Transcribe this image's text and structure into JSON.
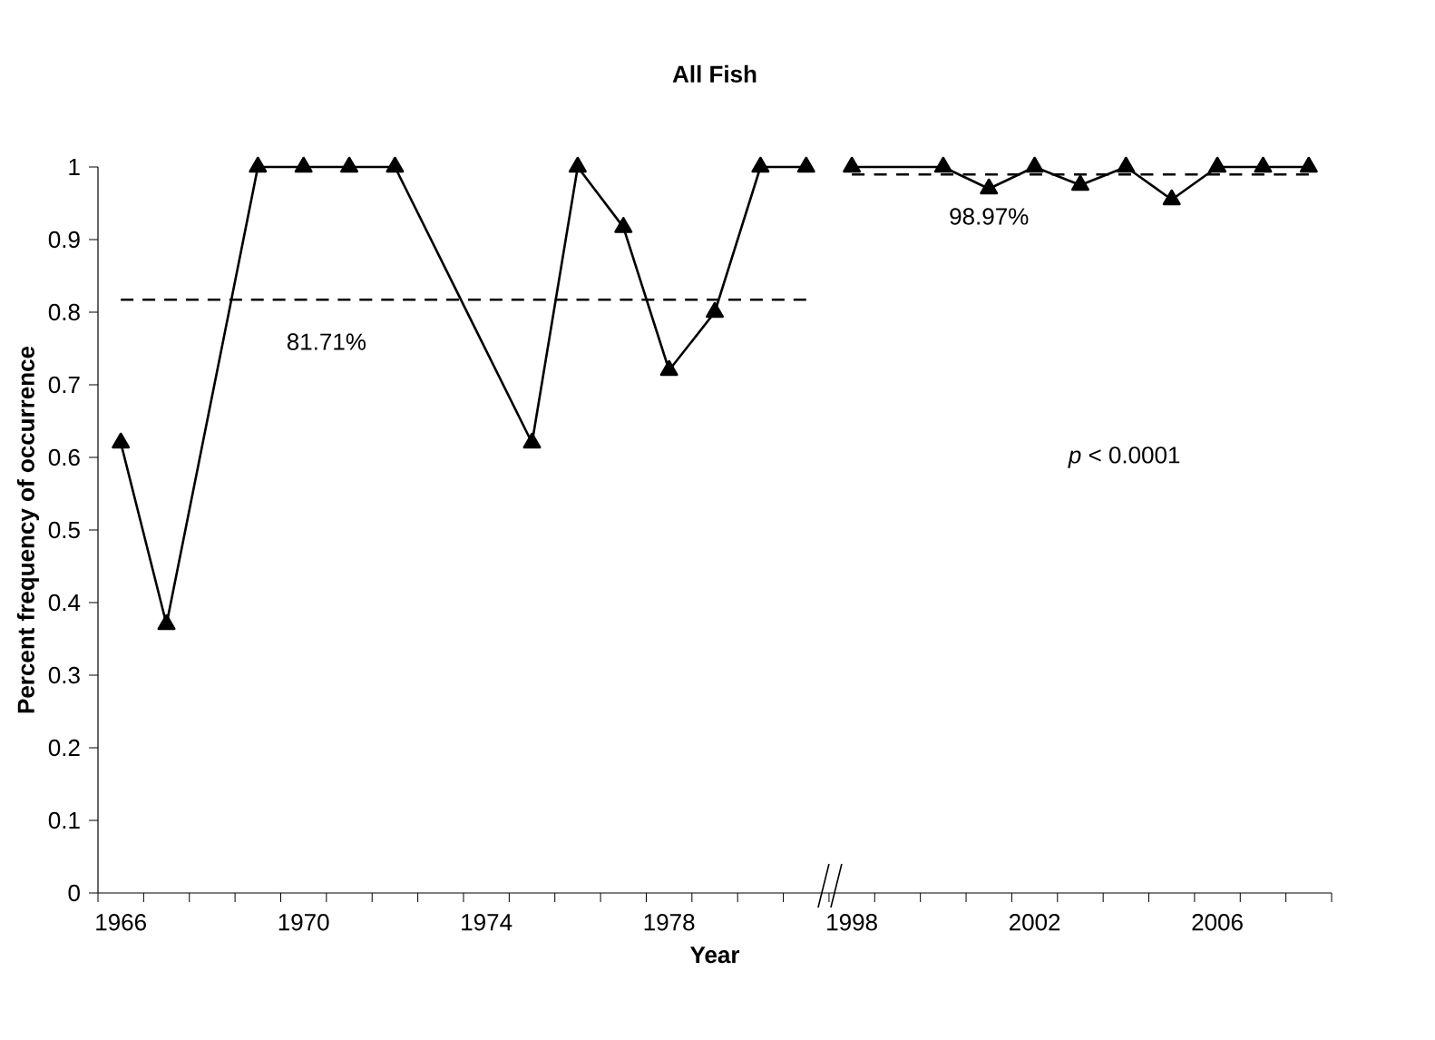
{
  "chart_data": {
    "type": "line",
    "title": "All Fish",
    "xlabel": "Year",
    "ylabel": "Percent frequency of occurrence",
    "categories": [
      "1966",
      null,
      null,
      null,
      "1970",
      null,
      null,
      null,
      "1974",
      null,
      null,
      null,
      "1978",
      null,
      null,
      null,
      "1998",
      null,
      null,
      null,
      "2002",
      null,
      null,
      null,
      "2006",
      null,
      null
    ],
    "series": [
      {
        "color": "#000000",
        "marker": "triangle",
        "line_style": "solid",
        "values": [
          0.62,
          0.37,
          null,
          1,
          1,
          1,
          1,
          null,
          null,
          0.62,
          1,
          0.917,
          0.72,
          0.8,
          1,
          1,
          null,
          null,
          null,
          null,
          null,
          null,
          null,
          null,
          null,
          null,
          null
        ]
      },
      {
        "color": "#000000",
        "marker": "triangle",
        "line_style": "solid",
        "values": [
          null,
          null,
          null,
          null,
          null,
          null,
          null,
          null,
          null,
          null,
          null,
          null,
          null,
          null,
          null,
          null,
          1,
          null,
          1,
          0.97,
          1,
          0.975,
          1,
          0.955,
          1,
          1,
          1
        ]
      },
      {
        "color": "#000000",
        "marker": "none",
        "line_style": "dashed",
        "values": [
          0.8171,
          0.8171,
          0.8171,
          0.8171,
          0.8171,
          0.8171,
          0.8171,
          0.8171,
          0.8171,
          0.8171,
          0.8171,
          0.8171,
          0.8171,
          0.8171,
          0.8171,
          0.8171,
          null,
          null,
          null,
          null,
          null,
          null,
          null,
          null,
          null,
          null,
          null
        ]
      },
      {
        "color": "#000000",
        "marker": "none",
        "line_style": "dashed",
        "values": [
          null,
          null,
          null,
          null,
          null,
          null,
          null,
          null,
          null,
          null,
          null,
          null,
          null,
          null,
          null,
          null,
          0.9897,
          0.9897,
          0.9897,
          0.9897,
          0.9897,
          0.9897,
          0.9897,
          0.9897,
          0.9897,
          0.9897,
          0.9897
        ]
      }
    ],
    "ylim": [
      0,
      1
    ],
    "yticks": [
      0,
      0.1,
      0.2,
      0.3,
      0.4,
      0.5,
      0.6,
      0.7,
      0.8,
      0.9,
      1
    ],
    "annotations": [
      "81.71%",
      "98.97%",
      "*p* < 0.0001"
    ]
  }
}
